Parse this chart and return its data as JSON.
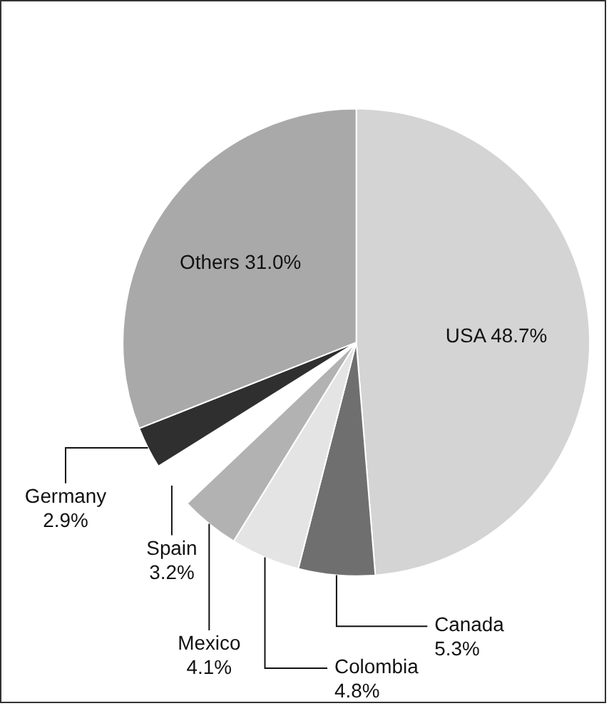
{
  "chart_data": {
    "type": "pie",
    "categories": [
      "USA",
      "Canada",
      "Colombia",
      "Mexico",
      "Spain",
      "Germany",
      "Others"
    ],
    "values": [
      48.7,
      5.3,
      4.8,
      4.1,
      3.2,
      2.9,
      31.0
    ],
    "value_labels": [
      "48.7%",
      "5.3%",
      "4.8%",
      "4.1%",
      "3.2%",
      "2.9%",
      "31.0%"
    ],
    "colors": [
      "#d4d4d4",
      "#6f6f6f",
      "#e4e4e4",
      "#b2b2b2",
      "#ffffff",
      "#2f2f2f",
      "#a9a9a9"
    ],
    "legend": false
  }
}
